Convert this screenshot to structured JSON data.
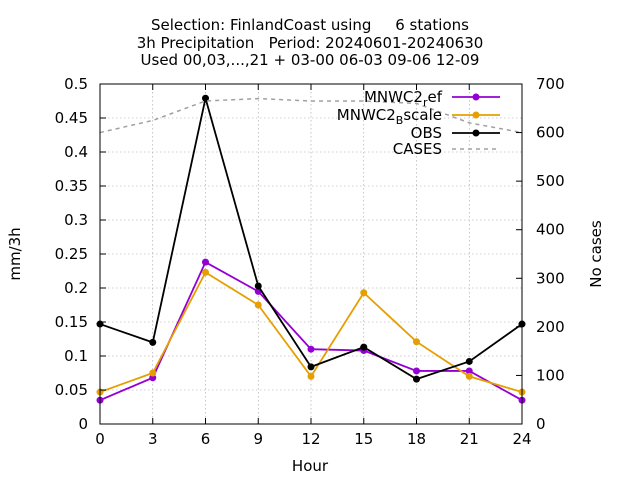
{
  "chart_data": {
    "type": "line",
    "title_lines": [
      "Selection: FinlandCoast using     6 stations",
      "3h Precipitation   Period: 20240601-20240630",
      "Used 00,03,...,21 + 03-00 06-03 09-06 12-09"
    ],
    "xlabel": "Hour",
    "ylabel": "mm/3h",
    "y2label": "No cases",
    "x": [
      0,
      3,
      6,
      9,
      12,
      15,
      18,
      21,
      24
    ],
    "xlim": [
      0,
      24
    ],
    "ylim": [
      0,
      0.5
    ],
    "y2lim": [
      0,
      700
    ],
    "x_ticks": [
      "0",
      "3",
      "6",
      "9",
      "12",
      "15",
      "18",
      "21",
      "24"
    ],
    "y_ticks": [
      "0",
      "0.05",
      "0.1",
      "0.15",
      "0.2",
      "0.25",
      "0.3",
      "0.35",
      "0.4",
      "0.45",
      "0.5"
    ],
    "y2_ticks": [
      "0",
      "100",
      "200",
      "300",
      "400",
      "500",
      "600",
      "700"
    ],
    "grid": true,
    "legend_position": "top-right",
    "series": [
      {
        "name": "MNWC2_ref",
        "label_main": "MNWC2",
        "label_sub": "r",
        "label_rest": "ef",
        "color": "#9400d3",
        "axis": "y",
        "dash": false,
        "marker": true,
        "values": [
          0.035,
          0.068,
          0.238,
          0.195,
          0.11,
          0.108,
          0.078,
          0.078,
          0.035
        ]
      },
      {
        "name": "MNWC2_Bscale",
        "label_main": "MNWC2",
        "label_sub": "B",
        "label_rest": "scale",
        "color": "#e69f00",
        "axis": "y",
        "dash": false,
        "marker": true,
        "values": [
          0.047,
          0.075,
          0.223,
          0.175,
          0.07,
          0.193,
          0.121,
          0.07,
          0.047
        ]
      },
      {
        "name": "OBS",
        "label_main": "OBS",
        "label_sub": "",
        "label_rest": "",
        "color": "#000000",
        "axis": "y",
        "dash": false,
        "marker": true,
        "values": [
          0.147,
          0.12,
          0.479,
          0.203,
          0.084,
          0.113,
          0.066,
          0.092,
          0.147
        ]
      },
      {
        "name": "CASES",
        "label_main": "CASES",
        "label_sub": "",
        "label_rest": "",
        "color": "#a0a0a0",
        "axis": "y2",
        "dash": true,
        "marker": false,
        "values": [
          600,
          625,
          665,
          670,
          665,
          665,
          660,
          620,
          600
        ]
      }
    ]
  }
}
